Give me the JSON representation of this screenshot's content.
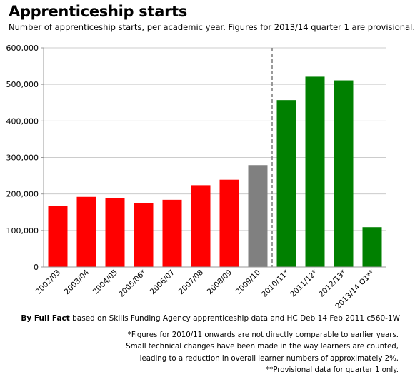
{
  "title": "Apprenticeship starts",
  "subtitle": "Number of apprenticeship starts, per academic year. Figures for 2013/14 quarter 1 are provisional.",
  "credit": {
    "by": "By Full Fact",
    "rest": " based on Skills Funding Agency apprenticeship data and HC Deb 14 Feb 2011 c560-1W"
  },
  "notes": [
    "*Figures for 2010/11 onwards are not directly comparable to earlier years.",
    "Small technical changes have been made in the way learners are counted,",
    "leading to a reduction in overall learner numbers of approximately 2%.",
    "**Provisional data for quarter 1 only."
  ],
  "colors": {
    "earlier": "#ff0000",
    "transition": "#808080",
    "later": "#008000",
    "divider": "#808080",
    "axis": "#999999",
    "grid": "#cccccc"
  },
  "chart_data": {
    "type": "bar",
    "categories": [
      "2002/03",
      "2003/04",
      "2004/05",
      "2005/06*",
      "2006/07",
      "2007/08",
      "2008/09",
      "2009/10",
      "2010/11*",
      "2011/12*",
      "2012/13*",
      "2013/14 Q1**"
    ],
    "values": [
      167000,
      192000,
      188000,
      175000,
      184000,
      224000,
      239000,
      279000,
      457000,
      521000,
      511000,
      109000
    ],
    "bar_groups": [
      "earlier",
      "earlier",
      "earlier",
      "earlier",
      "earlier",
      "earlier",
      "earlier",
      "transition",
      "later",
      "later",
      "later",
      "later"
    ],
    "divider_between": [
      "2009/10",
      "2010/11*"
    ],
    "ylim": [
      0,
      600000
    ],
    "yticks": [
      0,
      100000,
      200000,
      300000,
      400000,
      500000,
      600000
    ],
    "ytick_labels": [
      "0",
      "100,000",
      "200,000",
      "300,000",
      "400,000",
      "500,000",
      "600,000"
    ],
    "grid": true,
    "xlabel": "",
    "ylabel": ""
  }
}
